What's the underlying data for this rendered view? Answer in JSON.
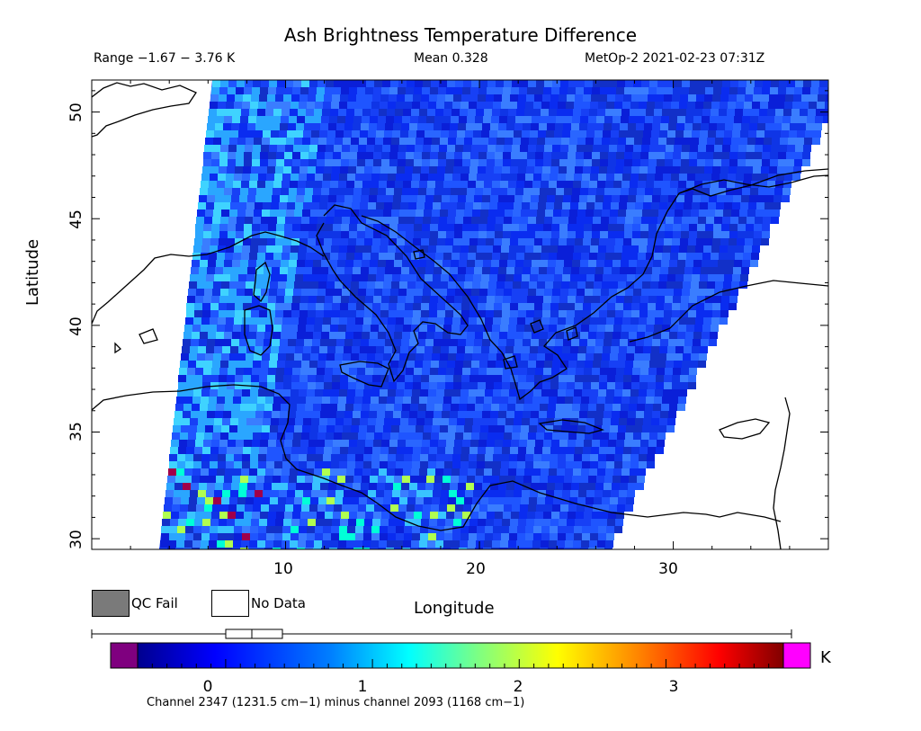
{
  "title": "Ash Brightness Temperature Difference",
  "range_text": "Range −1.67 − 3.76 K",
  "mean_text": "Mean 0.328",
  "satellite_text": "MetOp-2 2021-02-23 07:31Z",
  "map": {
    "xlabel": "Longitude",
    "ylabel": "Latitude",
    "xlim": [
      0,
      38
    ],
    "ylim": [
      29.5,
      51.5
    ],
    "x_ticks": [
      "10",
      "20",
      "30"
    ],
    "y_ticks": [
      "30",
      "35",
      "40",
      "45",
      "50"
    ],
    "mean_bt_diff_k": 0.328
  },
  "legend": {
    "qc_fail": "QC Fail",
    "no_data": "No Data",
    "qc_fail_color": "#7a7a7a"
  },
  "colorbar": {
    "unit": "K",
    "ticks": [
      "0",
      "1",
      "2",
      "3"
    ],
    "range": [
      -0.6,
      3.8
    ],
    "below_color": "#7f007f",
    "above_color": "#ff00ff",
    "colors": [
      "#00008f",
      "#0000ff",
      "#0080ff",
      "#00ffff",
      "#80ff80",
      "#ffff00",
      "#ff8000",
      "#ff0000",
      "#800000"
    ]
  },
  "footnote": "Channel 2347 (1231.5 cm−1) minus channel 2093 (1168 cm−1)"
}
